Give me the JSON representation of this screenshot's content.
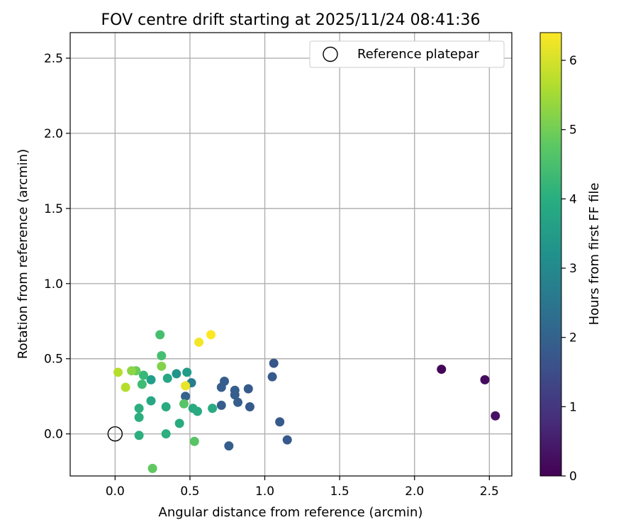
{
  "chart_data": {
    "type": "scatter",
    "title": "FOV centre drift starting at 2025/11/24 08:41:36",
    "xlabel": "Angular distance from reference (arcmin)",
    "ylabel": "Rotation from reference (arcmin)",
    "xlim": [
      -0.3,
      2.65
    ],
    "ylim": [
      -0.28,
      2.67
    ],
    "xticks": [
      0.0,
      0.5,
      1.0,
      1.5,
      2.0,
      2.5
    ],
    "yticks": [
      0.0,
      0.5,
      1.0,
      1.5,
      2.0,
      2.5
    ],
    "xtick_labels": [
      "0.0",
      "0.5",
      "1.0",
      "1.5",
      "2.0",
      "2.5"
    ],
    "ytick_labels": [
      "0.0",
      "0.5",
      "1.0",
      "1.5",
      "2.0",
      "2.5"
    ],
    "grid": true,
    "legend": {
      "position": "top-right",
      "entries": [
        "Reference platepar"
      ]
    },
    "reference_point": {
      "x": 0.0,
      "y": 0.0,
      "label": "Reference platepar"
    },
    "colorbar": {
      "label": "Hours from first FF file",
      "range": [
        0,
        6.4
      ],
      "ticks": [
        0,
        1,
        2,
        3,
        4,
        5,
        6
      ],
      "tick_labels": [
        "0",
        "1",
        "2",
        "3",
        "4",
        "5",
        "6"
      ],
      "colormap": "viridis"
    },
    "series": [
      {
        "name": "FOV centre drift",
        "points": [
          {
            "x": 2.18,
            "y": 0.43,
            "h": 0.1
          },
          {
            "x": 2.47,
            "y": 0.36,
            "h": 0.2
          },
          {
            "x": 2.54,
            "y": 0.12,
            "h": 0.3
          },
          {
            "x": 1.06,
            "y": 0.47,
            "h": 1.7
          },
          {
            "x": 1.05,
            "y": 0.38,
            "h": 1.8
          },
          {
            "x": 1.1,
            "y": 0.08,
            "h": 1.8
          },
          {
            "x": 1.15,
            "y": -0.04,
            "h": 1.8
          },
          {
            "x": 0.89,
            "y": 0.3,
            "h": 1.8
          },
          {
            "x": 0.9,
            "y": 0.18,
            "h": 1.8
          },
          {
            "x": 0.8,
            "y": 0.29,
            "h": 1.9
          },
          {
            "x": 0.8,
            "y": 0.26,
            "h": 1.9
          },
          {
            "x": 0.82,
            "y": 0.21,
            "h": 1.9
          },
          {
            "x": 0.73,
            "y": 0.35,
            "h": 1.9
          },
          {
            "x": 0.71,
            "y": 0.31,
            "h": 1.9
          },
          {
            "x": 0.71,
            "y": 0.19,
            "h": 1.9
          },
          {
            "x": 0.76,
            "y": -0.08,
            "h": 1.9
          },
          {
            "x": 0.47,
            "y": 0.25,
            "h": 2.0
          },
          {
            "x": 0.51,
            "y": 0.34,
            "h": 2.7
          },
          {
            "x": 0.41,
            "y": 0.4,
            "h": 3.3
          },
          {
            "x": 0.48,
            "y": 0.41,
            "h": 3.5
          },
          {
            "x": 0.24,
            "y": 0.36,
            "h": 3.6
          },
          {
            "x": 0.35,
            "y": 0.37,
            "h": 3.8
          },
          {
            "x": 0.24,
            "y": 0.22,
            "h": 3.8
          },
          {
            "x": 0.34,
            "y": 0.18,
            "h": 3.9
          },
          {
            "x": 0.43,
            "y": 0.07,
            "h": 3.9
          },
          {
            "x": 0.52,
            "y": 0.17,
            "h": 3.9
          },
          {
            "x": 0.55,
            "y": 0.15,
            "h": 3.9
          },
          {
            "x": 0.65,
            "y": 0.17,
            "h": 3.9
          },
          {
            "x": 0.16,
            "y": 0.17,
            "h": 4.0
          },
          {
            "x": 0.16,
            "y": 0.11,
            "h": 4.0
          },
          {
            "x": 0.16,
            "y": -0.01,
            "h": 4.0
          },
          {
            "x": 0.34,
            "y": 0.0,
            "h": 4.0
          },
          {
            "x": 0.19,
            "y": 0.39,
            "h": 4.3
          },
          {
            "x": 0.18,
            "y": 0.33,
            "h": 4.4
          },
          {
            "x": 0.3,
            "y": 0.66,
            "h": 4.5
          },
          {
            "x": 0.31,
            "y": 0.52,
            "h": 4.5
          },
          {
            "x": 0.46,
            "y": 0.2,
            "h": 4.7
          },
          {
            "x": 0.53,
            "y": -0.05,
            "h": 4.7
          },
          {
            "x": 0.25,
            "y": -0.23,
            "h": 4.8
          },
          {
            "x": 0.14,
            "y": 0.42,
            "h": 4.9
          },
          {
            "x": 0.31,
            "y": 0.45,
            "h": 5.2
          },
          {
            "x": 0.11,
            "y": 0.42,
            "h": 5.3
          },
          {
            "x": 0.02,
            "y": 0.41,
            "h": 5.7
          },
          {
            "x": 0.07,
            "y": 0.31,
            "h": 5.7
          },
          {
            "x": 0.47,
            "y": 0.32,
            "h": 6.2
          },
          {
            "x": 0.56,
            "y": 0.61,
            "h": 6.3
          },
          {
            "x": 0.64,
            "y": 0.66,
            "h": 6.4
          }
        ]
      }
    ]
  }
}
